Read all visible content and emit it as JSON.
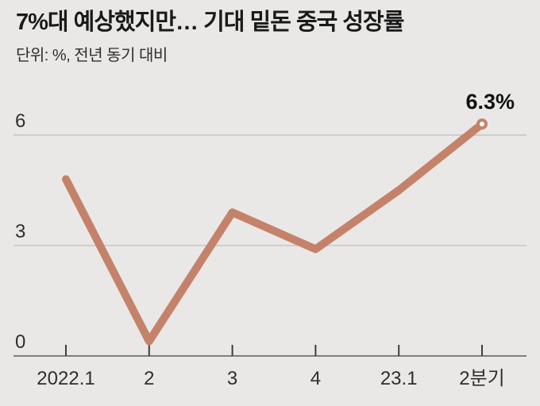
{
  "header": {
    "title": "7%대 예상했지만… 기대 밑돈 중국 성장률",
    "subtitle": "단위: %, 전년 동기 대비"
  },
  "chart_data": {
    "type": "line",
    "title": "7%대 예상했지만… 기대 밑돈 중국 성장률",
    "unit_note": "단위: %, 전년 동기 대비",
    "categories": [
      "2022.1",
      "2",
      "3",
      "4",
      "23.1",
      "2분기"
    ],
    "values": [
      4.8,
      0.4,
      3.9,
      2.9,
      4.5,
      6.3
    ],
    "yticks": [
      0,
      3,
      6
    ],
    "ytick_labels": [
      "0",
      "3",
      "6"
    ],
    "ylim": [
      0,
      6.5
    ],
    "xlabel": "",
    "ylabel": "",
    "grid": true,
    "legend_position": "none",
    "annotation": {
      "label": "6.3%",
      "point_index": 5
    },
    "marker": "open-circle-on-last-point"
  },
  "colors": {
    "background": "#e9e8e6",
    "line": "#c5826a",
    "gridline": "#c7c6c3",
    "axis_line": "#7f7f7e",
    "tick": "#3d3d3d",
    "title_text": "#1a1a1a",
    "subtitle_text": "#2e2e2e",
    "axis_label_text": "#2f2f2f",
    "annotation_text": "#111111",
    "marker_fill": "#ffffff"
  }
}
